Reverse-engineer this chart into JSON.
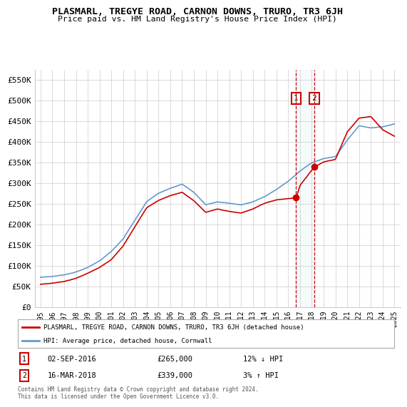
{
  "title": "PLASMARL, TREGYE ROAD, CARNON DOWNS, TRURO, TR3 6JH",
  "subtitle": "Price paid vs. HM Land Registry's House Price Index (HPI)",
  "legend_label_red": "PLASMARL, TREGYE ROAD, CARNON DOWNS, TRURO, TR3 6JH (detached house)",
  "legend_label_blue": "HPI: Average price, detached house, Cornwall",
  "transaction_1_date": "02-SEP-2016",
  "transaction_1_price": 265000,
  "transaction_1_hpi": "12% ↓ HPI",
  "transaction_2_date": "16-MAR-2018",
  "transaction_2_price": 339000,
  "transaction_2_hpi": "3% ↑ HPI",
  "transaction_1_x": 2016.67,
  "transaction_2_x": 2018.21,
  "footer": "Contains HM Land Registry data © Crown copyright and database right 2024.\nThis data is licensed under the Open Government Licence v3.0.",
  "ylim": [
    0,
    575000
  ],
  "xlim": [
    1994.5,
    2025.5
  ],
  "yticks": [
    0,
    50000,
    100000,
    150000,
    200000,
    250000,
    300000,
    350000,
    400000,
    450000,
    500000,
    550000
  ],
  "ytick_labels": [
    "£0",
    "£50K",
    "£100K",
    "£150K",
    "£200K",
    "£250K",
    "£300K",
    "£350K",
    "£400K",
    "£450K",
    "£500K",
    "£550K"
  ],
  "background_color": "#ffffff",
  "grid_color": "#cccccc",
  "red_color": "#cc0000",
  "blue_color": "#6699cc",
  "hpi_key_years": [
    1995,
    1996,
    1997,
    1998,
    1999,
    2000,
    2001,
    2002,
    2003,
    2004,
    2005,
    2006,
    2007,
    2008,
    2009,
    2010,
    2011,
    2012,
    2013,
    2014,
    2015,
    2016,
    2017,
    2018,
    2019,
    2020,
    2021,
    2022,
    2023,
    2024,
    2025
  ],
  "hpi_key_vals": [
    72000,
    74000,
    78000,
    85000,
    96000,
    112000,
    135000,
    165000,
    210000,
    255000,
    275000,
    288000,
    298000,
    278000,
    248000,
    255000,
    252000,
    248000,
    255000,
    268000,
    285000,
    305000,
    330000,
    350000,
    360000,
    365000,
    405000,
    440000,
    435000,
    438000,
    445000
  ],
  "red_key_years": [
    1995,
    1996,
    1997,
    1998,
    1999,
    2000,
    2001,
    2002,
    2003,
    2004,
    2005,
    2006,
    2007,
    2008,
    2009,
    2010,
    2011,
    2012,
    2013,
    2014,
    2015,
    2016,
    2016.67,
    2017,
    2018,
    2018.21,
    2019,
    2020,
    2021,
    2022,
    2023,
    2024,
    2025
  ],
  "red_key_vals": [
    55000,
    58000,
    62000,
    70000,
    82000,
    96000,
    115000,
    148000,
    195000,
    240000,
    258000,
    270000,
    278000,
    258000,
    230000,
    238000,
    232000,
    228000,
    238000,
    252000,
    260000,
    263000,
    265000,
    295000,
    332000,
    339000,
    352000,
    358000,
    425000,
    458000,
    462000,
    430000,
    415000
  ]
}
